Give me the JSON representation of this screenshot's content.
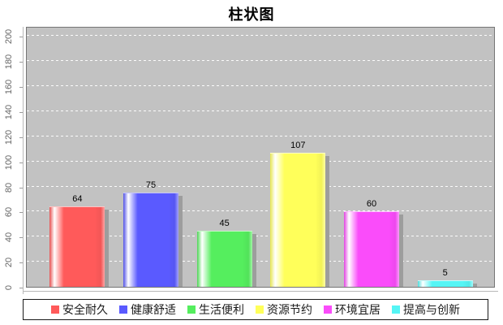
{
  "title": "柱状图",
  "chart_data": {
    "type": "bar",
    "title": "柱状图",
    "categories": [
      "安全耐久",
      "健康舒适",
      "生活便利",
      "资源节约",
      "环境宜居",
      "提高与创新"
    ],
    "values": [
      64,
      75,
      45,
      107,
      60,
      5
    ],
    "colors": [
      "#ff5a5a",
      "#5a5aff",
      "#55ee5e",
      "#ffff5a",
      "#fa4cfa",
      "#55f5f5"
    ],
    "value_labels": [
      "64",
      "75",
      "45",
      "107",
      "60",
      "5"
    ],
    "ylabel": "",
    "xlabel": "",
    "ylim": [
      0,
      208
    ],
    "yticks": [
      0,
      20,
      40,
      60,
      80,
      100,
      120,
      140,
      160,
      180,
      200
    ],
    "grid": "horizontal-dashed-white",
    "legend_position": "bottom",
    "plot_bg_color": "#c2c2c2",
    "shadow_color": "#9d9d9d",
    "gridline_color": "#ffffff",
    "tick_label_color": "#666666",
    "value_label_color": "#000000"
  }
}
